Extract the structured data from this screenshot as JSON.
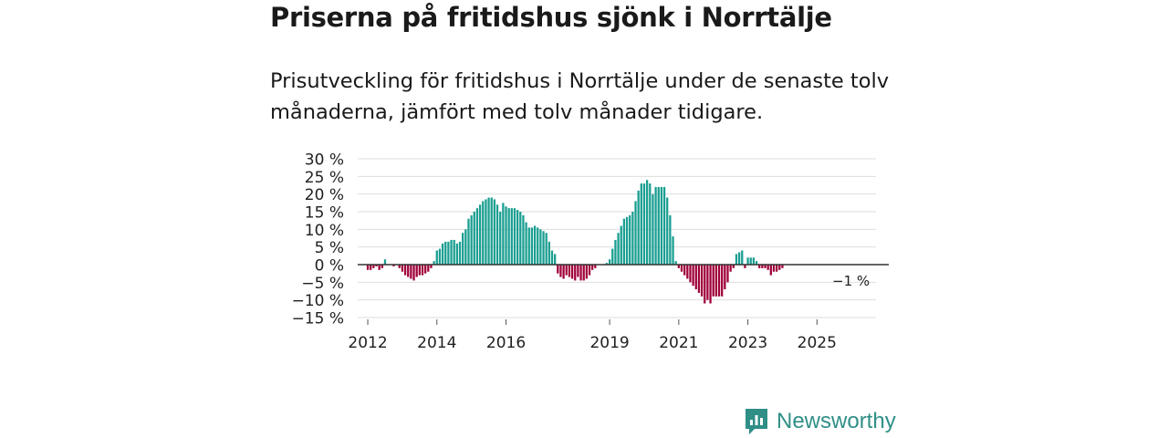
{
  "title": "Priserna på fritidshus sjönk i Norrtälje",
  "subtitle": "Prisutveckling för fritidshus i Norrtälje under de senaste tolv månaderna, jämfört med tolv månader tidigare.",
  "brand": {
    "name": "Newsworthy",
    "icon": "newsworthy-logo-icon"
  },
  "colors": {
    "positive": "#1a9e91",
    "negative": "#a0003a",
    "grid": "#dedede",
    "zero_line": "#333333",
    "brand": "#2f8f87"
  },
  "chart_data": {
    "type": "bar",
    "title": "Priserna på fritidshus sjönk i Norrtälje",
    "xlabel": "",
    "ylabel": "",
    "ylim": [
      -15,
      30
    ],
    "y_ticks": [
      {
        "value": 30,
        "label": "30 %"
      },
      {
        "value": 25,
        "label": "25 %"
      },
      {
        "value": 20,
        "label": "20 %"
      },
      {
        "value": 15,
        "label": "15 %"
      },
      {
        "value": 10,
        "label": "10 %"
      },
      {
        "value": 5,
        "label": "5 %"
      },
      {
        "value": 0,
        "label": "0 %"
      },
      {
        "value": -5,
        "label": "−5 %"
      },
      {
        "value": -10,
        "label": "−10 %"
      },
      {
        "value": -15,
        "label": "−15 %"
      }
    ],
    "x_ticks": [
      {
        "year": 2012,
        "label": "2012"
      },
      {
        "year": 2014,
        "label": "2014"
      },
      {
        "year": 2016,
        "label": "2016"
      },
      {
        "year": 2019,
        "label": "2019"
      },
      {
        "year": 2021,
        "label": "2021"
      },
      {
        "year": 2023,
        "label": "2023"
      },
      {
        "year": 2025,
        "label": "2025"
      }
    ],
    "x_start": "2011-10",
    "x_end": "2026-10",
    "series": [
      {
        "name": "Prisutveckling",
        "start": "2012-01",
        "values": [
          -1.5,
          -1.5,
          -1,
          -0.5,
          -1.5,
          -1,
          1.5,
          0,
          0,
          -0.5,
          0,
          -1,
          -2,
          -3,
          -3.5,
          -4,
          -4.5,
          -3.5,
          -3,
          -3,
          -2.5,
          -2,
          -1,
          1,
          4,
          4.5,
          6,
          6.5,
          6.5,
          7,
          7,
          6,
          6.5,
          9,
          10,
          13,
          14,
          15,
          16,
          17,
          18,
          18.5,
          19,
          19,
          18.5,
          17,
          15,
          17.5,
          16.5,
          16,
          16,
          16,
          15.5,
          15,
          14,
          12,
          10.5,
          10.5,
          11,
          10.5,
          10,
          9.5,
          9,
          6.5,
          4,
          3,
          -2.5,
          -3.5,
          -4,
          -3,
          -3.5,
          -4,
          -4.5,
          -3.5,
          -4.5,
          -4.5,
          -4,
          -3,
          -1.5,
          -1,
          0,
          0,
          0,
          0.5,
          1.5,
          4.5,
          7,
          9,
          11,
          13,
          13.5,
          14,
          15,
          18,
          21,
          23,
          23,
          24,
          23,
          20,
          22,
          22,
          22,
          22,
          19,
          14,
          8,
          1,
          -1,
          -2,
          -3,
          -4,
          -5,
          -6,
          -7,
          -8,
          -9,
          -11,
          -10,
          -11,
          -9,
          -9,
          -9,
          -9,
          -7,
          -5,
          -2,
          -1,
          3,
          3.5,
          4,
          -1,
          2,
          2,
          2,
          1,
          -1,
          -1,
          -1,
          -1.5,
          -3,
          -2,
          -2,
          -1.5,
          -1
        ]
      }
    ],
    "annotations": [
      {
        "label": "−1 %",
        "target": "last-bar"
      }
    ]
  }
}
